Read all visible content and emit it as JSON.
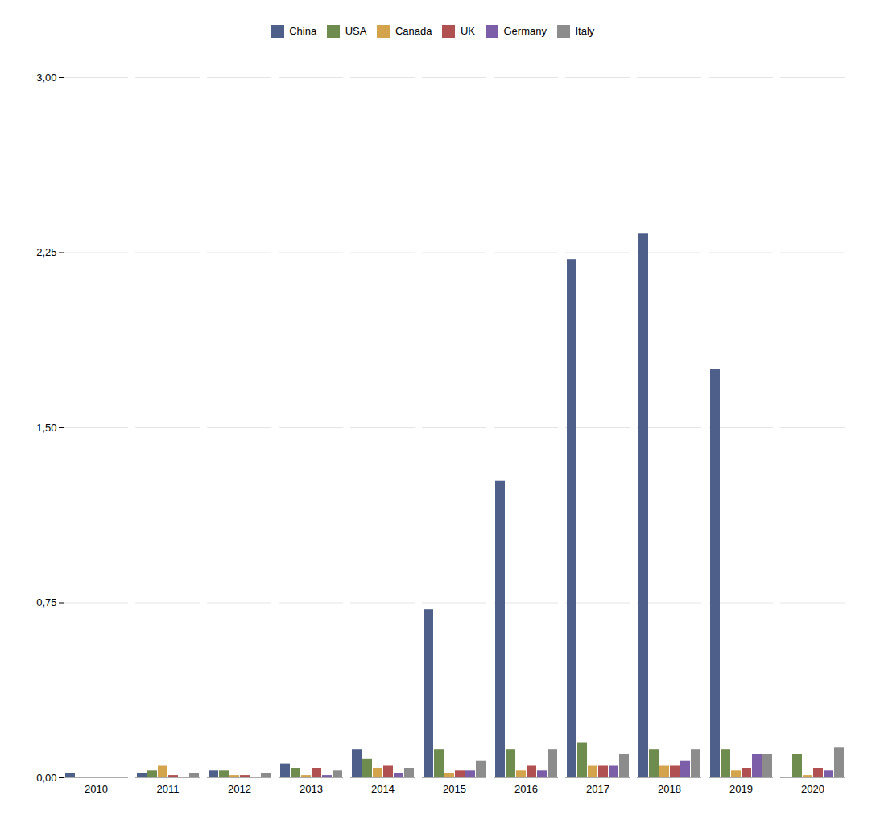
{
  "chart_data": {
    "type": "bar",
    "categories": [
      "2010",
      "2011",
      "2012",
      "2013",
      "2014",
      "2015",
      "2016",
      "2017",
      "2018",
      "2019",
      "2020"
    ],
    "series": [
      {
        "name": "China",
        "color": "#4e5f8a",
        "values": [
          0.02,
          0.02,
          0.03,
          0.06,
          0.12,
          0.72,
          1.27,
          2.22,
          2.33,
          1.75,
          0.0
        ]
      },
      {
        "name": "USA",
        "color": "#6e8c4e",
        "values": [
          0.0,
          0.03,
          0.03,
          0.04,
          0.08,
          0.12,
          0.12,
          0.15,
          0.12,
          0.12,
          0.1
        ]
      },
      {
        "name": "Canada",
        "color": "#d4a44c",
        "values": [
          0.0,
          0.05,
          0.01,
          0.01,
          0.04,
          0.02,
          0.03,
          0.05,
          0.05,
          0.03,
          0.01
        ]
      },
      {
        "name": "UK",
        "color": "#b05050",
        "values": [
          0.0,
          0.01,
          0.01,
          0.04,
          0.05,
          0.03,
          0.05,
          0.05,
          0.05,
          0.04,
          0.04
        ]
      },
      {
        "name": "Germany",
        "color": "#7b5ea7",
        "values": [
          0.0,
          0.0,
          0.0,
          0.01,
          0.02,
          0.03,
          0.03,
          0.05,
          0.07,
          0.1,
          0.03
        ]
      },
      {
        "name": "Italy",
        "color": "#8c8c8c",
        "values": [
          0.0,
          0.02,
          0.02,
          0.03,
          0.04,
          0.07,
          0.12,
          0.1,
          0.12,
          0.1,
          0.13
        ]
      }
    ],
    "ylim": [
      0,
      3.0
    ],
    "yticks": [
      {
        "value": 0.0,
        "label": "0,00"
      },
      {
        "value": 0.75,
        "label": "0,75"
      },
      {
        "value": 1.5,
        "label": "1,50"
      },
      {
        "value": 2.25,
        "label": "2,25"
      },
      {
        "value": 3.0,
        "label": "3,00"
      }
    ],
    "grid": true,
    "legend": "top"
  }
}
